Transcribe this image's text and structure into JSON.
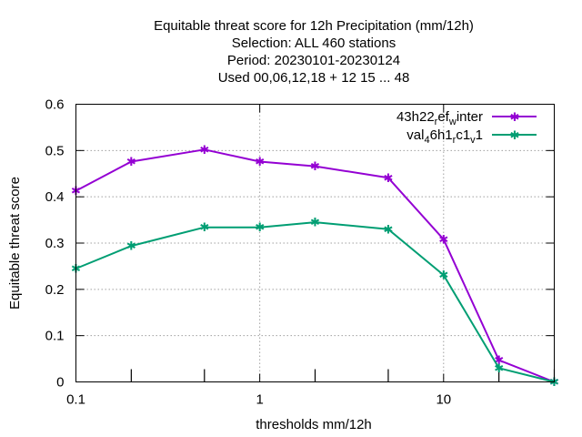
{
  "chart_data": {
    "type": "line",
    "title_lines": [
      "Equitable threat score  for 12h Precipitation (mm/12h)",
      "Selection: ALL    460 stations",
      "Period: 20230101-20230124",
      "Used  00,06,12,18  + 12 15 ... 48"
    ],
    "xlabel": "thresholds mm/12h",
    "ylabel": "Equitable threat score",
    "x_scale": "log",
    "xlim": [
      0.1,
      40
    ],
    "ylim": [
      0,
      0.6
    ],
    "x_ticks": [
      0.1,
      1,
      10
    ],
    "x_tick_labels": [
      "0.1",
      "1",
      "10"
    ],
    "y_ticks": [
      0,
      0.1,
      0.2,
      0.3,
      0.4,
      0.5,
      0.6
    ],
    "y_tick_labels": [
      "0",
      "0.1",
      "0.2",
      "0.3",
      "0.4",
      "0.5",
      "0.6"
    ],
    "grid": true,
    "legend_position": "top-right",
    "x": [
      0.1,
      0.2,
      0.5,
      1,
      2,
      5,
      10,
      20,
      40
    ],
    "series": [
      {
        "name": "43h22_ref_winter",
        "legend": {
          "base": "43h22",
          "sub1": "r",
          "mid": "ef",
          "sub2": "w",
          "tail": "inter"
        },
        "color": "#9400d3",
        "values": [
          0.413,
          0.476,
          0.502,
          0.476,
          0.466,
          0.441,
          0.308,
          0.047,
          0.0
        ]
      },
      {
        "name": "val_46h1_rc1_v1",
        "legend": {
          "base": "val",
          "sub1": "4",
          "mid": "6h1",
          "sub2": "r",
          "mid2": "c1",
          "sub3": "v",
          "tail": "1"
        },
        "color": "#009e73",
        "values": [
          0.245,
          0.294,
          0.334,
          0.334,
          0.345,
          0.33,
          0.231,
          0.03,
          0.0
        ]
      }
    ]
  }
}
